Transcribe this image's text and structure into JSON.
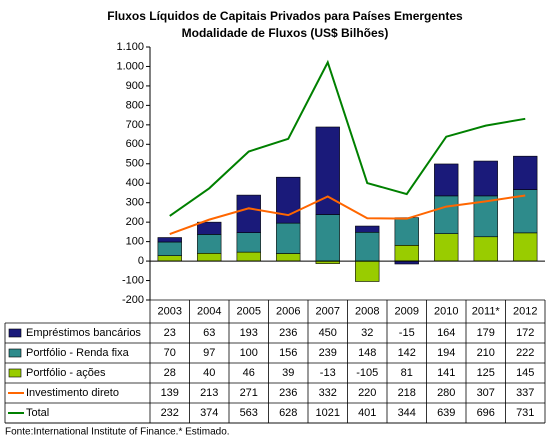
{
  "chart_data": {
    "type": "bar",
    "title": "Fluxos Líquidos de Capitais Privados para Países Emergentes",
    "subtitle": "Modalidade de Fluxos (US$ Bilhões)",
    "categories": [
      "2003",
      "2004",
      "2005",
      "2006",
      "2007",
      "2008",
      "2009",
      "2010",
      "2011*",
      "2012"
    ],
    "series": [
      {
        "name": "Empréstimos bancários",
        "type": "bar",
        "color": "#1a1a7a",
        "values": [
          23,
          63,
          193,
          236,
          450,
          32,
          -15,
          164,
          179,
          172
        ]
      },
      {
        "name": "Portfólio - Renda fixa",
        "type": "bar",
        "color": "#2e8b8b",
        "values": [
          70,
          97,
          100,
          156,
          239,
          148,
          142,
          194,
          210,
          222
        ]
      },
      {
        "name": "Portfólio - ações",
        "type": "bar",
        "color": "#99cc00",
        "values": [
          28,
          40,
          46,
          39,
          -13,
          -105,
          81,
          141,
          125,
          145
        ]
      },
      {
        "name": "Investimento direto",
        "type": "line",
        "color": "#ff6600",
        "values": [
          139,
          213,
          271,
          236,
          332,
          220,
          218,
          280,
          307,
          337
        ]
      },
      {
        "name": "Total",
        "type": "line",
        "color": "#008000",
        "values": [
          232,
          374,
          563,
          628,
          1021,
          401,
          344,
          639,
          696,
          731
        ]
      }
    ],
    "ylim": [
      -200,
      1100
    ],
    "yticks": [
      -200,
      -100,
      0,
      100,
      200,
      300,
      400,
      500,
      600,
      700,
      800,
      900,
      {
        "value": 1000,
        "label": "1.000"
      },
      {
        "value": 1100,
        "label": "1.100"
      }
    ],
    "grid": false,
    "source": "Fonte:International Institute of Finance.* Estimado."
  }
}
